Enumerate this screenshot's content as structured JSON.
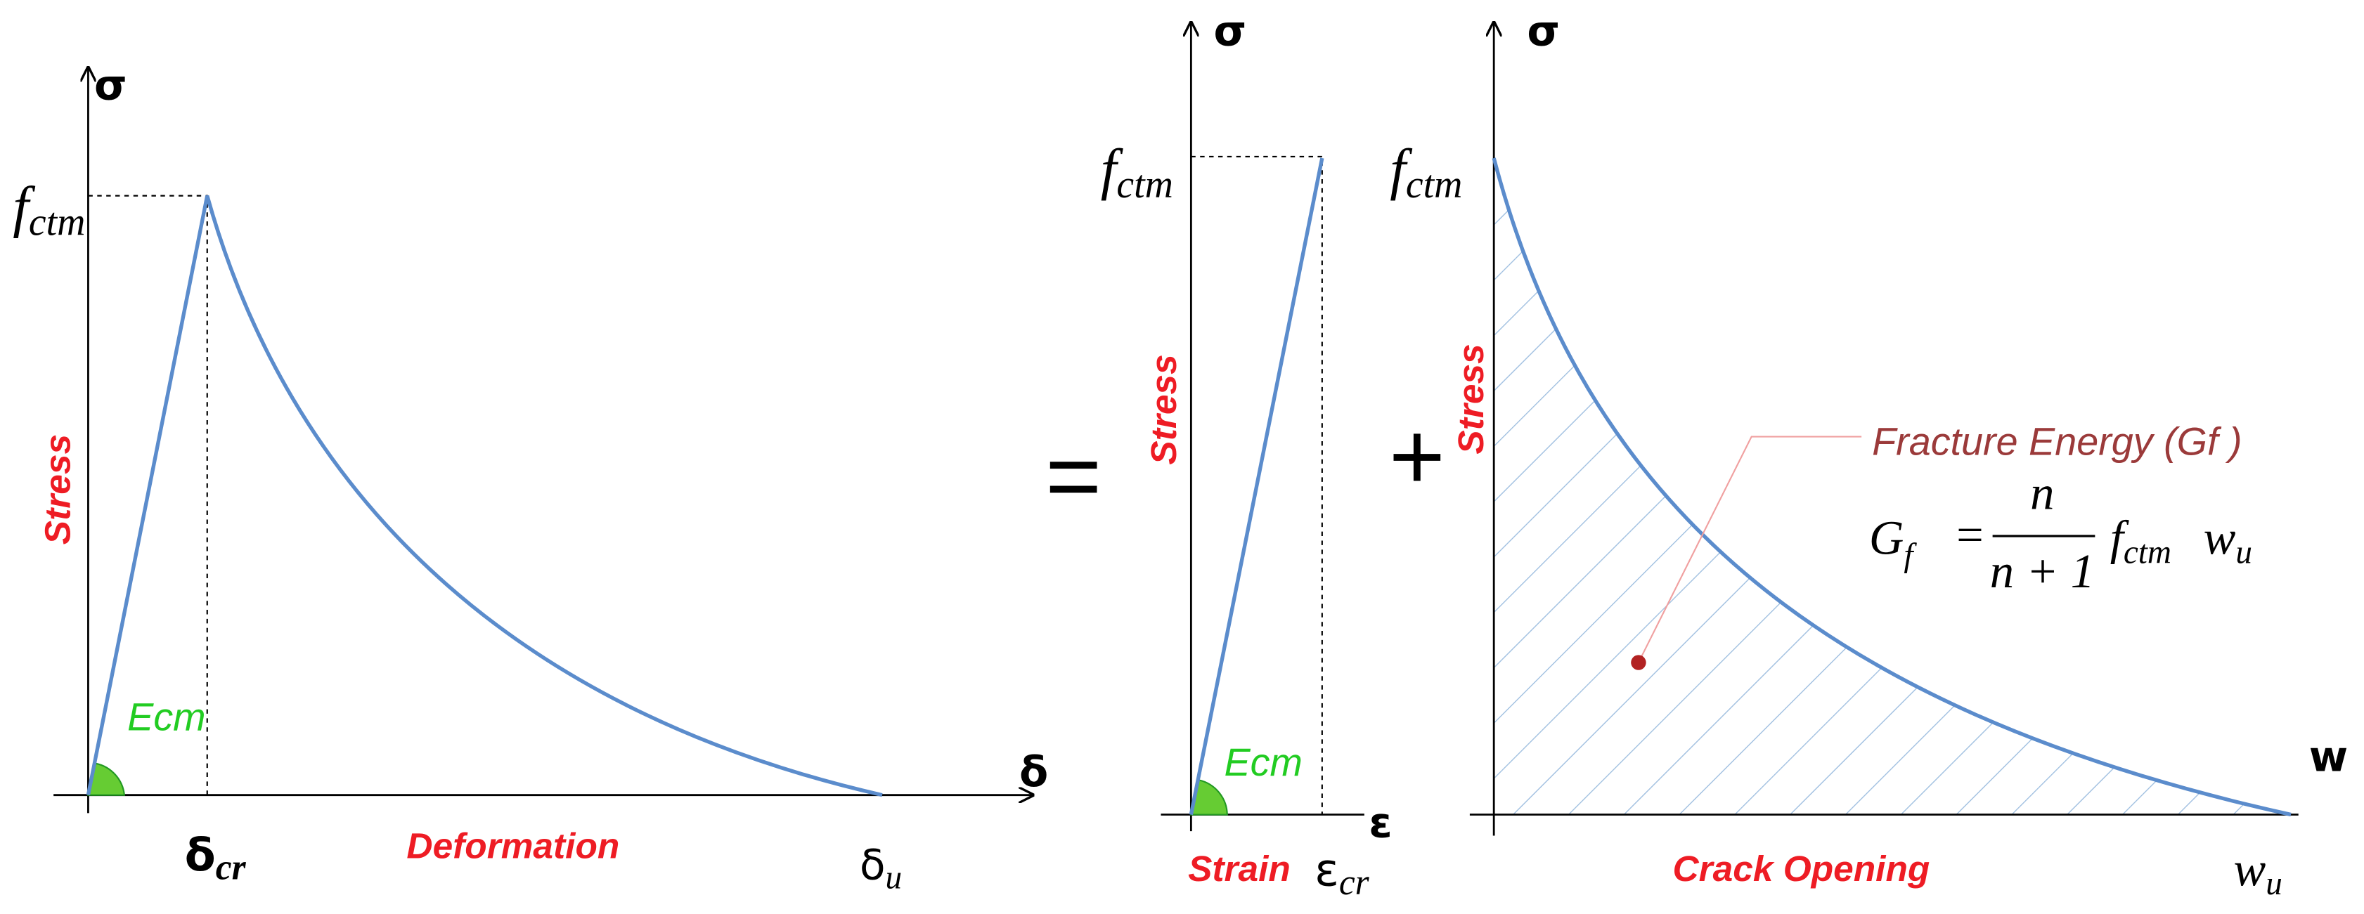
{
  "panels": [
    {
      "y_axis": "σ",
      "x_axis": "δ",
      "y_label": "Stress",
      "x_label": "Deformation",
      "peak": "f",
      "peak_sub": "ctm",
      "slope": "Ecm",
      "x_mark": "δ",
      "x_mark_sub": "cr",
      "x_end": "δ",
      "x_end_sub": "u"
    },
    {
      "y_axis": "σ",
      "x_axis": "ε",
      "y_label": "Stress",
      "x_label": "Strain",
      "peak": "f",
      "peak_sub": "ctm",
      "slope": "Ecm",
      "x_mark": "ε",
      "x_mark_sub": "cr"
    },
    {
      "y_axis": "σ",
      "x_axis": "w",
      "y_label": "Stress",
      "x_label": "Crack Opening",
      "peak": "f",
      "peak_sub": "ctm",
      "x_end": "w",
      "x_end_sub": "u"
    }
  ],
  "operators": [
    "=",
    "+"
  ],
  "annotation": {
    "title": "Fracture Energy (Gf )",
    "formula": {
      "lhs": "G",
      "lhs_sub": "f",
      "eq": "=",
      "num": "n",
      "den": "n + 1",
      "factor": "f",
      "factor_sub": "ctm",
      "tail": "w",
      "tail_sub": "u"
    }
  }
}
